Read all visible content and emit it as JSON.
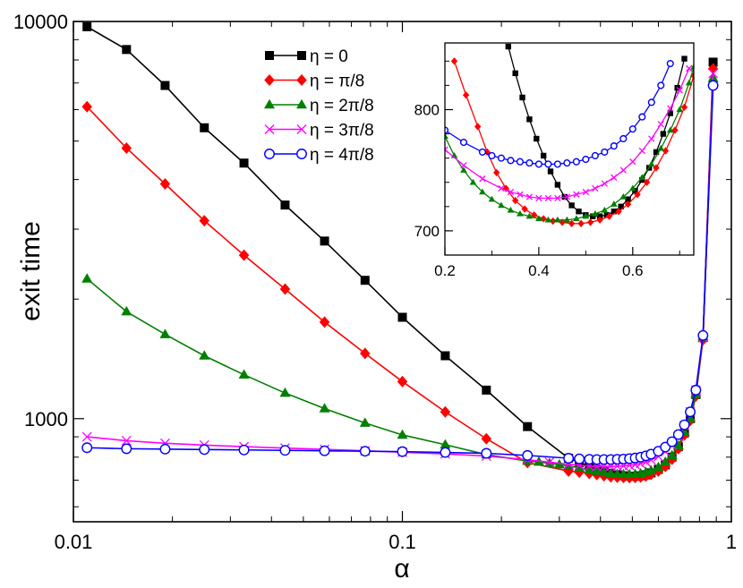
{
  "chart_data": [
    {
      "id": "main",
      "type": "line",
      "xscale": "log",
      "yscale": "log",
      "xlabel": "α",
      "ylabel": "exit time",
      "xlim": [
        0.01,
        1
      ],
      "ylim": [
        550,
        10000
      ],
      "xticks": [
        {
          "value": 0.01,
          "label": "0.01"
        },
        {
          "value": 0.1,
          "label": "0.1"
        },
        {
          "value": 1,
          "label": "1"
        }
      ],
      "yticks": [
        {
          "value": 1000,
          "label": "1000"
        },
        {
          "value": 10000,
          "label": "10000"
        }
      ],
      "legend": {
        "position": "top-center"
      },
      "series": [
        {
          "name": "η = 0",
          "color": "#000000",
          "marker": "square",
          "x": [
            0.011,
            0.0145,
            0.019,
            0.025,
            0.033,
            0.044,
            0.058,
            0.077,
            0.1,
            0.135,
            0.18,
            0.24,
            0.32,
            0.345,
            0.37,
            0.39,
            0.41,
            0.43,
            0.45,
            0.47,
            0.49,
            0.51,
            0.53,
            0.55,
            0.57,
            0.6,
            0.63,
            0.66,
            0.69,
            0.72,
            0.75,
            0.78,
            0.82,
            0.88
          ],
          "y": [
            9700,
            8500,
            6900,
            5400,
            4400,
            3450,
            2800,
            2230,
            1800,
            1440,
            1180,
            955,
            795,
            775,
            760,
            745,
            735,
            728,
            722,
            718,
            716,
            716,
            718,
            722,
            730,
            745,
            765,
            800,
            850,
            920,
            1000,
            1150,
            1600,
            7900
          ]
        },
        {
          "name": "η = π/8",
          "color": "#ff0000",
          "marker": "diamond",
          "x": [
            0.011,
            0.0145,
            0.019,
            0.025,
            0.033,
            0.044,
            0.058,
            0.077,
            0.1,
            0.135,
            0.18,
            0.24,
            0.32,
            0.345,
            0.37,
            0.39,
            0.41,
            0.43,
            0.45,
            0.47,
            0.49,
            0.51,
            0.53,
            0.55,
            0.57,
            0.6,
            0.63,
            0.66,
            0.69,
            0.72,
            0.75,
            0.78,
            0.82,
            0.88
          ],
          "y": [
            6100,
            4800,
            3900,
            3150,
            2580,
            2120,
            1750,
            1460,
            1240,
            1040,
            890,
            775,
            738,
            733,
            728,
            723,
            718,
            714,
            712,
            711,
            710,
            711,
            713,
            717,
            724,
            738,
            758,
            790,
            840,
            910,
            990,
            1140,
            1580,
            7600
          ]
        },
        {
          "name": "η = 2π/8",
          "color": "#008000",
          "marker": "triangle",
          "x": [
            0.011,
            0.0145,
            0.019,
            0.025,
            0.033,
            0.044,
            0.058,
            0.077,
            0.1,
            0.135,
            0.18,
            0.24,
            0.26,
            0.28,
            0.3,
            0.32,
            0.345,
            0.37,
            0.39,
            0.41,
            0.43,
            0.45,
            0.47,
            0.49,
            0.51,
            0.53,
            0.55,
            0.57,
            0.6,
            0.63,
            0.66,
            0.69,
            0.72,
            0.75,
            0.78,
            0.82,
            0.88
          ],
          "y": [
            2250,
            1860,
            1630,
            1440,
            1290,
            1160,
            1060,
            975,
            910,
            860,
            812,
            782,
            778,
            772,
            766,
            760,
            752,
            744,
            738,
            732,
            728,
            725,
            724,
            724,
            725,
            728,
            733,
            740,
            755,
            778,
            808,
            855,
            925,
            1000,
            1150,
            1600,
            7200
          ]
        },
        {
          "name": "η = 3π/8",
          "color": "#ff00ff",
          "marker": "x",
          "x": [
            0.011,
            0.0145,
            0.019,
            0.025,
            0.033,
            0.044,
            0.058,
            0.077,
            0.1,
            0.135,
            0.18,
            0.24,
            0.28,
            0.32,
            0.345,
            0.37,
            0.39,
            0.41,
            0.43,
            0.45,
            0.47,
            0.49,
            0.51,
            0.53,
            0.55,
            0.57,
            0.6,
            0.63,
            0.66,
            0.69,
            0.72,
            0.75,
            0.78,
            0.82,
            0.88
          ],
          "y": [
            900,
            880,
            867,
            858,
            850,
            843,
            837,
            830,
            823,
            815,
            805,
            788,
            777,
            768,
            763,
            760,
            758,
            758,
            758,
            759,
            760,
            763,
            766,
            771,
            778,
            787,
            803,
            826,
            857,
            900,
            960,
            1040,
            1180,
            1600,
            7400
          ]
        },
        {
          "name": "η = 4π/8",
          "color": "#0000ff",
          "marker": "circle",
          "x": [
            0.011,
            0.0145,
            0.019,
            0.025,
            0.033,
            0.044,
            0.058,
            0.077,
            0.1,
            0.135,
            0.18,
            0.24,
            0.32,
            0.345,
            0.37,
            0.39,
            0.41,
            0.43,
            0.45,
            0.47,
            0.49,
            0.51,
            0.53,
            0.55,
            0.57,
            0.6,
            0.63,
            0.66,
            0.69,
            0.72,
            0.75,
            0.78,
            0.82,
            0.88
          ],
          "y": [
            845,
            840,
            838,
            836,
            834,
            832,
            830,
            828,
            826,
            822,
            818,
            808,
            795,
            792,
            790,
            789,
            789,
            789,
            790,
            791,
            793,
            796,
            800,
            806,
            814,
            828,
            848,
            875,
            912,
            965,
            1040,
            1180,
            1620,
            6900
          ]
        }
      ]
    },
    {
      "id": "inset",
      "type": "line",
      "xscale": "linear",
      "yscale": "linear",
      "xlim": [
        0.2,
        0.73
      ],
      "ylim": [
        680,
        855
      ],
      "xticks": [
        {
          "value": 0.2,
          "label": "0.2"
        },
        {
          "value": 0.4,
          "label": "0.4"
        },
        {
          "value": 0.6,
          "label": "0.6"
        }
      ],
      "yticks": [
        {
          "value": 700,
          "label": "700"
        },
        {
          "value": 800,
          "label": "800"
        }
      ],
      "series": [
        {
          "name": "η = 0",
          "color": "#000000",
          "marker": "square",
          "x": [
            0.335,
            0.35,
            0.365,
            0.38,
            0.395,
            0.41,
            0.425,
            0.44,
            0.455,
            0.47,
            0.485,
            0.5,
            0.515,
            0.53,
            0.545,
            0.56,
            0.575,
            0.59,
            0.605,
            0.62,
            0.635,
            0.65,
            0.665,
            0.68,
            0.695,
            0.71
          ],
          "y": [
            852,
            830,
            810,
            792,
            776,
            762,
            749,
            738,
            728,
            721,
            716,
            713,
            712,
            712,
            713,
            716,
            720,
            726,
            733,
            742,
            752,
            765,
            780,
            797,
            818,
            842
          ]
        },
        {
          "name": "η = π/8",
          "color": "#ff0000",
          "marker": "diamond",
          "x": [
            0.22,
            0.245,
            0.27,
            0.29,
            0.31,
            0.33,
            0.35,
            0.37,
            0.39,
            0.41,
            0.43,
            0.45,
            0.47,
            0.49,
            0.51,
            0.53,
            0.55,
            0.57,
            0.59,
            0.61,
            0.63,
            0.65,
            0.67,
            0.69,
            0.71,
            0.73
          ],
          "y": [
            840,
            812,
            786,
            765,
            748,
            735,
            725,
            718,
            713,
            710,
            708,
            707,
            706,
            706,
            707,
            709,
            712,
            716,
            722,
            730,
            740,
            752,
            766,
            783,
            802,
            828
          ]
        },
        {
          "name": "η = 2π/8",
          "color": "#008000",
          "marker": "triangle",
          "x": [
            0.2,
            0.22,
            0.24,
            0.26,
            0.28,
            0.3,
            0.32,
            0.34,
            0.36,
            0.38,
            0.4,
            0.42,
            0.44,
            0.46,
            0.48,
            0.5,
            0.52,
            0.54,
            0.56,
            0.58,
            0.6,
            0.62,
            0.64,
            0.66,
            0.68,
            0.7,
            0.72,
            0.73
          ],
          "y": [
            778,
            762,
            750,
            740,
            732,
            726,
            721,
            717,
            714,
            712,
            710,
            709,
            709,
            709,
            710,
            712,
            714,
            717,
            722,
            728,
            735,
            744,
            755,
            768,
            783,
            800,
            822,
            835
          ]
        },
        {
          "name": "η = 3π/8",
          "color": "#ff00ff",
          "marker": "x",
          "x": [
            0.2,
            0.24,
            0.28,
            0.32,
            0.34,
            0.36,
            0.38,
            0.4,
            0.42,
            0.44,
            0.46,
            0.48,
            0.5,
            0.52,
            0.54,
            0.56,
            0.58,
            0.6,
            0.62,
            0.64,
            0.66,
            0.68,
            0.7,
            0.72
          ],
          "y": [
            767,
            754,
            743,
            735,
            732,
            730,
            728,
            727,
            727,
            727,
            728,
            730,
            732,
            735,
            739,
            744,
            750,
            757,
            766,
            776,
            788,
            801,
            816,
            834
          ]
        },
        {
          "name": "η = 4π/8",
          "color": "#0000ff",
          "marker": "circle",
          "x": [
            0.2,
            0.24,
            0.28,
            0.3,
            0.32,
            0.34,
            0.36,
            0.38,
            0.4,
            0.42,
            0.44,
            0.46,
            0.48,
            0.5,
            0.52,
            0.54,
            0.56,
            0.58,
            0.6,
            0.62,
            0.64,
            0.66,
            0.68
          ],
          "y": [
            783,
            773,
            765,
            762,
            760,
            758,
            757,
            756,
            755,
            755,
            755,
            756,
            757,
            759,
            762,
            765,
            770,
            776,
            784,
            794,
            806,
            820,
            838
          ]
        }
      ]
    }
  ]
}
